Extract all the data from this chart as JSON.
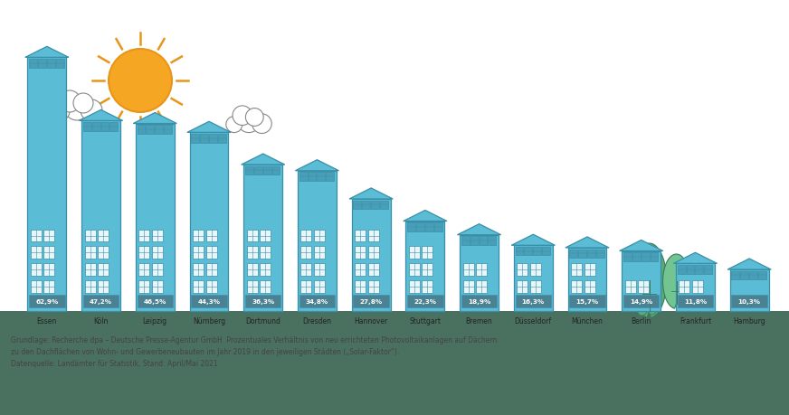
{
  "cities": [
    "Essen",
    "Köln",
    "Leipzig",
    "Nürnberg",
    "Dortmund",
    "Dresden",
    "Hannover",
    "Stuttgart",
    "Bremen",
    "Düsseldorf",
    "München",
    "Berlin",
    "Frankfurt",
    "Hamburg"
  ],
  "values": [
    62.9,
    47.2,
    46.5,
    44.3,
    36.3,
    34.8,
    27.8,
    22.3,
    18.9,
    16.3,
    15.7,
    14.9,
    11.8,
    10.3
  ],
  "labels": [
    "62,9%",
    "47,2%",
    "46,5%",
    "44,3%",
    "36,3%",
    "34,8%",
    "27,8%",
    "22,3%",
    "18,9%",
    "16,3%",
    "15,7%",
    "14,9%",
    "11,8%",
    "10,3%"
  ],
  "bar_color": "#5bbcd6",
  "bar_edge_color": "#3a8fa8",
  "solar_color": "#4a9fb8",
  "solar_panel_dark": "#3a8fa8",
  "window_color": "#e8f6fa",
  "window_edge": "#3a8fa8",
  "label_bg_color": "#4a7c8c",
  "background_color": "#ffffff",
  "ground_color": "#4a7060",
  "sun_color": "#f5a623",
  "sun_outline": "#e8951a",
  "cloud_outline": "#888888",
  "tree_color1": "#5aaa7a",
  "tree_color2": "#72c490",
  "tree_edge": "#3a7a5a",
  "footnote_line1": "Grundlage: Recherche dpa – Deutsche Presse-Agentur GmbH. Prozentuales Verhältnis von neu errichteten Photovoltaikanlagen auf Dächern",
  "footnote_line2": "zu den Dachflächen von Wohn- und Gewerbeneubauten im Jahr 2019 in den jeweiligen Städten („Solar-Faktor“).",
  "footnote_line3": "Datenquelle: Landämter für Statistik, Stand: April/Mai 2021"
}
